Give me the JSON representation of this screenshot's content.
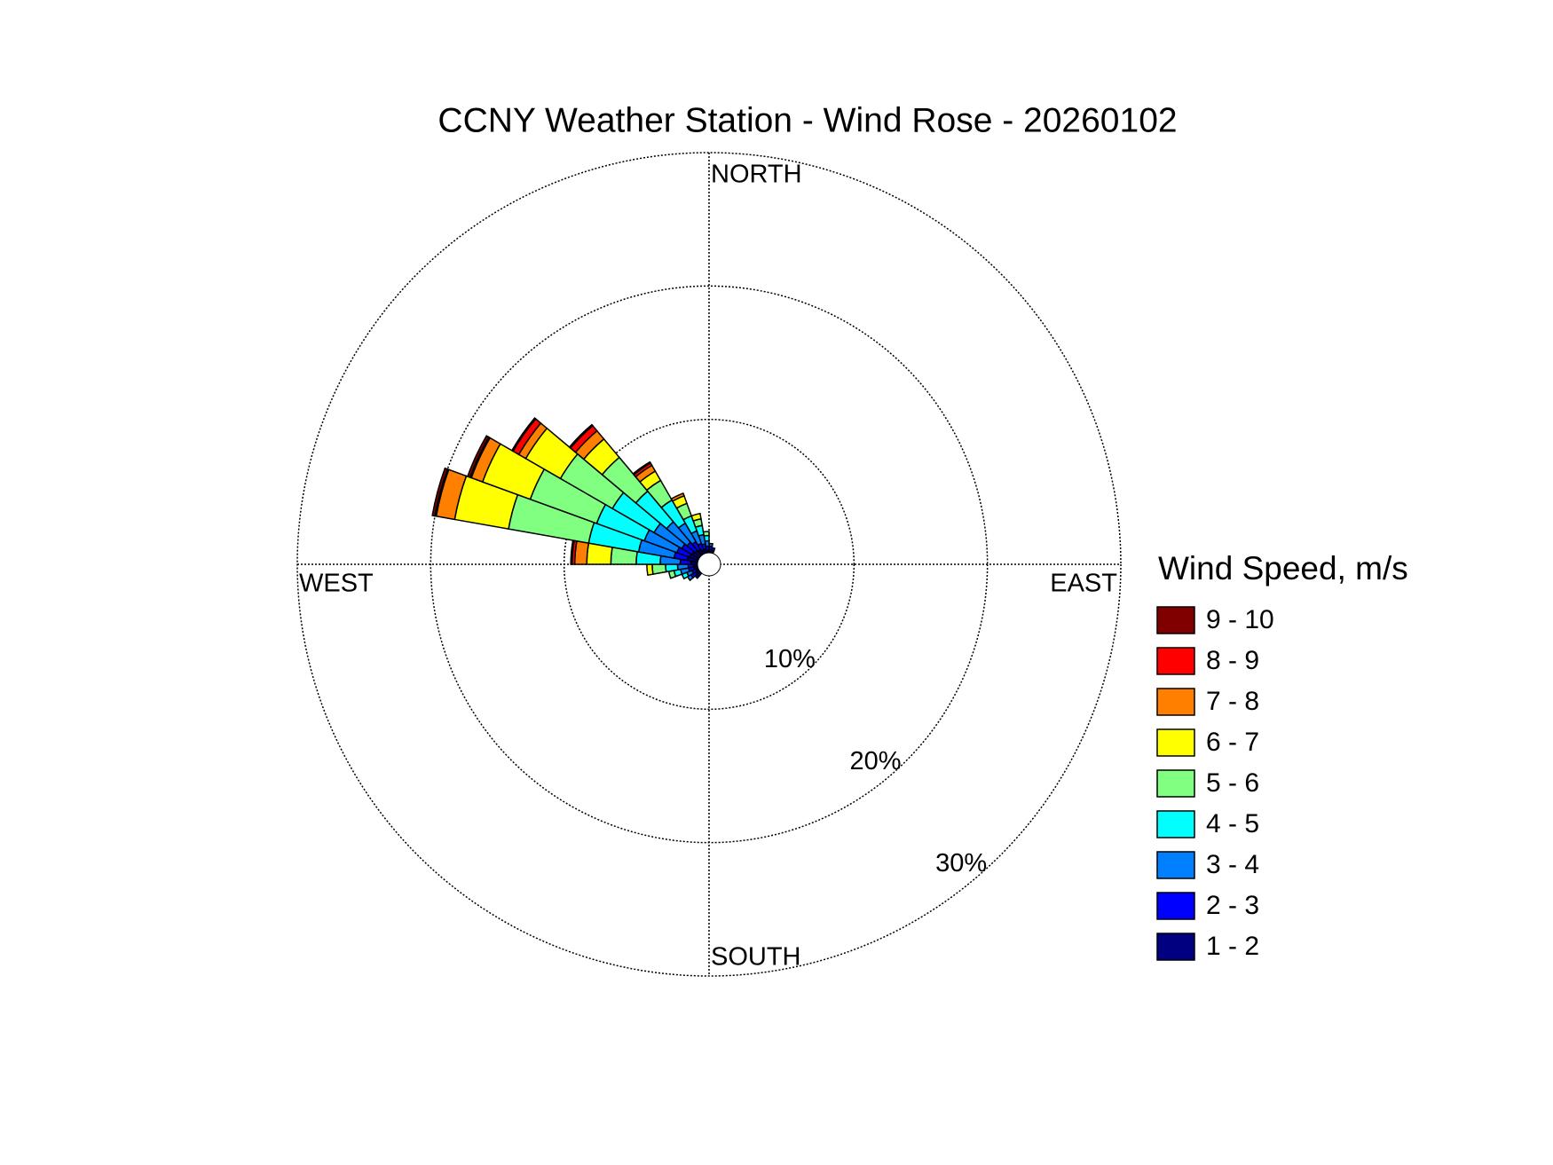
{
  "chart_data": {
    "type": "windrose",
    "title": "CCNY Weather Station - Wind Rose - 20260102",
    "direction_labels": [
      "NORTH",
      "EAST",
      "SOUTH",
      "WEST"
    ],
    "legend_title": "Wind Speed, m/s",
    "directions": [
      5,
      15,
      225,
      235,
      245,
      255,
      265,
      275,
      285,
      295,
      305,
      315,
      325,
      335,
      345,
      355
    ],
    "sector_width": 10,
    "rlim": [
      0,
      30
    ],
    "rticks": [
      {
        "value": 10,
        "label": "10%"
      },
      {
        "value": 20,
        "label": "20%"
      },
      {
        "value": 30,
        "label": "30%"
      }
    ],
    "grid": true,
    "series": [
      {
        "name": "1 - 2",
        "color": "#000080",
        "values": [
          0.2,
          0.2,
          0.3,
          0.3,
          0.2,
          0.3,
          0.3,
          0.5,
          0.8,
          0.7,
          0.6,
          0.5,
          0.4,
          0.3,
          0.3,
          0.2
        ]
      },
      {
        "name": "2 - 3",
        "color": "#0000ff",
        "values": [
          0.3,
          0.2,
          0.2,
          0.4,
          0.3,
          0.4,
          0.4,
          0.8,
          1.0,
          1.0,
          0.9,
          0.8,
          0.7,
          0.5,
          0.4,
          0.3
        ]
      },
      {
        "name": "3 - 4",
        "color": "#0080ff",
        "values": [
          0.2,
          0,
          0,
          0.3,
          0.4,
          0.6,
          0.8,
          1.5,
          2.7,
          2.6,
          2.4,
          2.0,
          1.6,
          1.0,
          0.7,
          0.4
        ]
      },
      {
        "name": "4 - 5",
        "color": "#00ffff",
        "values": [
          0,
          0,
          0,
          0,
          0.4,
          0.5,
          0.9,
          1.8,
          3.8,
          3.8,
          3.6,
          3.0,
          2.0,
          1.2,
          0.7,
          0.4
        ]
      },
      {
        "name": "5 - 6",
        "color": "#80ff80",
        "values": [
          0,
          0,
          0,
          0,
          0,
          0.4,
          1.0,
          1.9,
          6.1,
          5.3,
          4.5,
          3.3,
          1.7,
          1.0,
          0.5,
          0.3
        ]
      },
      {
        "name": "6 - 7",
        "color": "#ffff00",
        "values": [
          0,
          0,
          0,
          0,
          0,
          0,
          0.4,
          1.8,
          4.1,
          3.8,
          3.0,
          1.8,
          0.8,
          0.6,
          0.4,
          0
        ]
      },
      {
        "name": "7 - 8",
        "color": "#ff8000",
        "values": [
          0,
          0,
          0,
          0,
          0,
          0,
          0,
          0.9,
          1.4,
          0.9,
          0.6,
          0.8,
          0.5,
          0.2,
          0,
          0
        ]
      },
      {
        "name": "8 - 9",
        "color": "#ff0000",
        "values": [
          0,
          0,
          0,
          0,
          0,
          0,
          0,
          0.2,
          0.1,
          0.1,
          0.5,
          0.5,
          0.2,
          0,
          0,
          0
        ]
      },
      {
        "name": "9 - 10",
        "color": "#800000",
        "values": [
          0,
          0,
          0,
          0,
          0,
          0,
          0,
          0.1,
          0.2,
          0.2,
          0.1,
          0.1,
          0.1,
          0,
          0,
          0
        ]
      }
    ]
  }
}
